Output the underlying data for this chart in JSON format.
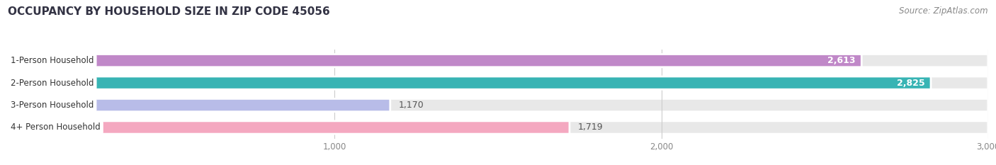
{
  "title": "OCCUPANCY BY HOUSEHOLD SIZE IN ZIP CODE 45056",
  "source": "Source: ZipAtlas.com",
  "categories": [
    "1-Person Household",
    "2-Person Household",
    "3-Person Household",
    "4+ Person Household"
  ],
  "values": [
    2613,
    2825,
    1170,
    1719
  ],
  "bar_colors": [
    "#c088c8",
    "#38b4b4",
    "#b8bce8",
    "#f4a8c0"
  ],
  "xlim_max": 3000,
  "xticks": [
    1000,
    2000,
    3000
  ],
  "title_color": "#333344",
  "title_fontsize": 11,
  "source_fontsize": 8.5,
  "label_fontsize": 8.5,
  "value_fontsize": 9,
  "bg_color": "#ffffff",
  "bar_bg_color": "#e8e8e8",
  "bar_border_color": "#ffffff",
  "grid_color": "#cccccc",
  "tick_color": "#888888"
}
